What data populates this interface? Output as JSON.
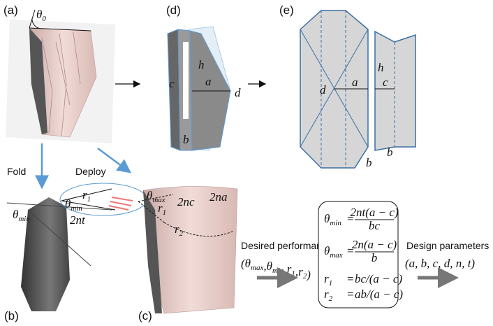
{
  "panel_labels": [
    "(a)",
    "(b)",
    "(c)",
    "(d)",
    "(e)"
  ],
  "panel_a": {
    "angle": {
      "symbol": "θ",
      "sub": "0"
    }
  },
  "panel_b": {
    "arrow_label": "Fold",
    "angle_outer": {
      "symbol": "θ",
      "sub": "min"
    },
    "inset": {
      "angle": {
        "symbol": "θ",
        "sub": "min"
      },
      "radius": {
        "symbol": "r",
        "sub": "1"
      },
      "thickness": "2nt"
    }
  },
  "panel_c": {
    "arrow_label": "Deploy",
    "angle": {
      "symbol": "θ",
      "sub": "max"
    },
    "r1": {
      "symbol": "r",
      "sub": "1"
    },
    "r2": {
      "symbol": "r",
      "sub": "2"
    },
    "width_c": "2nc",
    "width_a": "2na"
  },
  "panel_d": {
    "h": "h",
    "c": "c",
    "a": "a",
    "d": "d",
    "b": "b"
  },
  "panel_e": {
    "d": "d",
    "a": "a",
    "h": "h",
    "c": "c",
    "b_labels": [
      "b",
      "b"
    ]
  },
  "workflow": {
    "input_label": "Desired performance",
    "input_tuple": {
      "open": "(",
      "separator": ",",
      "close": ")",
      "items": [
        {
          "symbol": "θ",
          "sub": "max"
        },
        {
          "symbol": "θ",
          "sub": "min"
        },
        {
          "symbol": "r",
          "sub": "1"
        },
        {
          "symbol": "r",
          "sub": "2"
        }
      ]
    },
    "equals": "=",
    "equations": [
      {
        "lhs": {
          "symbol": "θ",
          "sub": "min"
        },
        "numerator": "2nt(a − c)",
        "denominator": "bc"
      },
      {
        "lhs": {
          "symbol": "θ",
          "sub": "max"
        },
        "numerator": "2n(a − c)",
        "denominator": "b"
      },
      {
        "lhs": {
          "symbol": "r",
          "sub": "1"
        },
        "rhs": "bc/(a − c)"
      },
      {
        "lhs": {
          "symbol": "r",
          "sub": "2"
        },
        "rhs": "ab/(a − c)"
      }
    ],
    "output_label": "Design parameters",
    "output_tuple": "(a, b, c, d, n, t)"
  }
}
